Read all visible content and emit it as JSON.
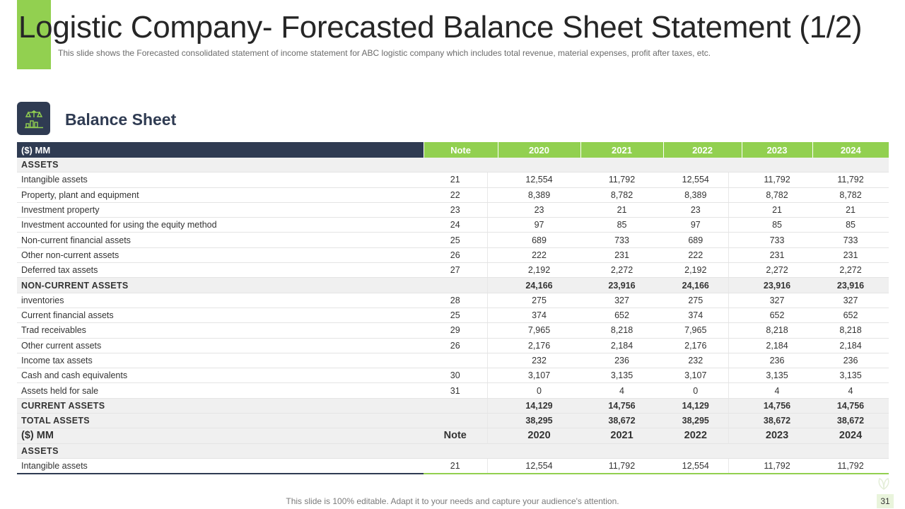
{
  "header": {
    "title": "Logistic Company- Forecasted Balance Sheet Statement (1/2)",
    "subtitle": "This slide shows the Forecasted consolidated statement of income statement for ABC logistic company which includes total revenue,  material expenses, profit after taxes, etc."
  },
  "section": {
    "title": "Balance Sheet",
    "icon": "balance-scale-icon"
  },
  "table": {
    "columns": [
      "($) MM",
      "Note",
      "2020",
      "2021",
      "2022",
      "2023",
      "2024"
    ],
    "rows": [
      {
        "type": "section",
        "label": "ASSETS"
      },
      {
        "type": "item",
        "label": "Intangible assets",
        "note": "21",
        "values": [
          "12,554",
          "11,792",
          "12,554",
          "11,792",
          "11,792"
        ]
      },
      {
        "type": "item",
        "label": "Property, plant and equipment",
        "note": "22",
        "values": [
          "8,389",
          "8,782",
          "8,389",
          "8,782",
          "8,782"
        ]
      },
      {
        "type": "item",
        "label": "Investment  property",
        "note": "23",
        "values": [
          "23",
          "21",
          "23",
          "21",
          "21"
        ]
      },
      {
        "type": "item",
        "label": "Investment accounted for using the equity method",
        "note": "24",
        "values": [
          "97",
          "85",
          "97",
          "85",
          "85"
        ]
      },
      {
        "type": "item",
        "label": "Non-current  financial assets",
        "note": "25",
        "values": [
          "689",
          "733",
          "689",
          "733",
          "733"
        ]
      },
      {
        "type": "item",
        "label": "Other non-current  assets",
        "note": "26",
        "values": [
          "222",
          "231",
          "222",
          "231",
          "231"
        ]
      },
      {
        "type": "item",
        "label": "Deferred  tax assets",
        "note": "27",
        "values": [
          "2,192",
          "2,272",
          "2,192",
          "2,272",
          "2,272"
        ]
      },
      {
        "type": "subtotal",
        "label": "NON-CURRENT  ASSETS",
        "note": "",
        "values": [
          "24,166",
          "23,916",
          "24,166",
          "23,916",
          "23,916"
        ]
      },
      {
        "type": "item",
        "label": "inventories",
        "note": "28",
        "values": [
          "275",
          "327",
          "275",
          "327",
          "327"
        ]
      },
      {
        "type": "item",
        "label": "Current financial assets",
        "note": "25",
        "values": [
          "374",
          "652",
          "374",
          "652",
          "652"
        ]
      },
      {
        "type": "item",
        "label": "Trad receivables",
        "note": "29",
        "values": [
          "7,965",
          "8,218",
          "7,965",
          "8,218",
          "8,218"
        ]
      },
      {
        "type": "item",
        "label": "Other current assets",
        "note": "26",
        "values": [
          "2,176",
          "2,184",
          "2,176",
          "2,184",
          "2,184"
        ]
      },
      {
        "type": "item",
        "label": "Income tax assets",
        "note": "",
        "values": [
          "232",
          "236",
          "232",
          "236",
          "236"
        ]
      },
      {
        "type": "item",
        "label": "Cash and cash equivalents",
        "note": "30",
        "values": [
          "3,107",
          "3,135",
          "3,107",
          "3,135",
          "3,135"
        ]
      },
      {
        "type": "item",
        "label": "Assets held for sale",
        "note": "31",
        "values": [
          "0",
          "4",
          "0",
          "4",
          "4"
        ]
      },
      {
        "type": "subtotal",
        "label": "CURRENT  ASSETS",
        "note": "",
        "values": [
          "14,129",
          "14,756",
          "14,129",
          "14,756",
          "14,756"
        ]
      },
      {
        "type": "subtotal",
        "label": "TOTAL ASSETS",
        "note": "",
        "values": [
          "38,295",
          "38,672",
          "38,295",
          "38,672",
          "38,672"
        ]
      },
      {
        "type": "repeat",
        "label": "($) MM",
        "note": "Note",
        "values": [
          "2020",
          "2021",
          "2022",
          "2023",
          "2024"
        ]
      },
      {
        "type": "section",
        "label": "ASSETS"
      },
      {
        "type": "item",
        "label": "Intangible  assets",
        "note": "21",
        "values": [
          "12,554",
          "11,792",
          "12,554",
          "11,792",
          "11,792"
        ]
      }
    ]
  },
  "footer": {
    "text": "This slide is 100% editable. Adapt it to your needs and capture your audience's attention.",
    "page_number": "31"
  },
  "colors": {
    "navy": "#2f3b52",
    "green": "#92d050",
    "row_shade": "#f0f0f0"
  }
}
